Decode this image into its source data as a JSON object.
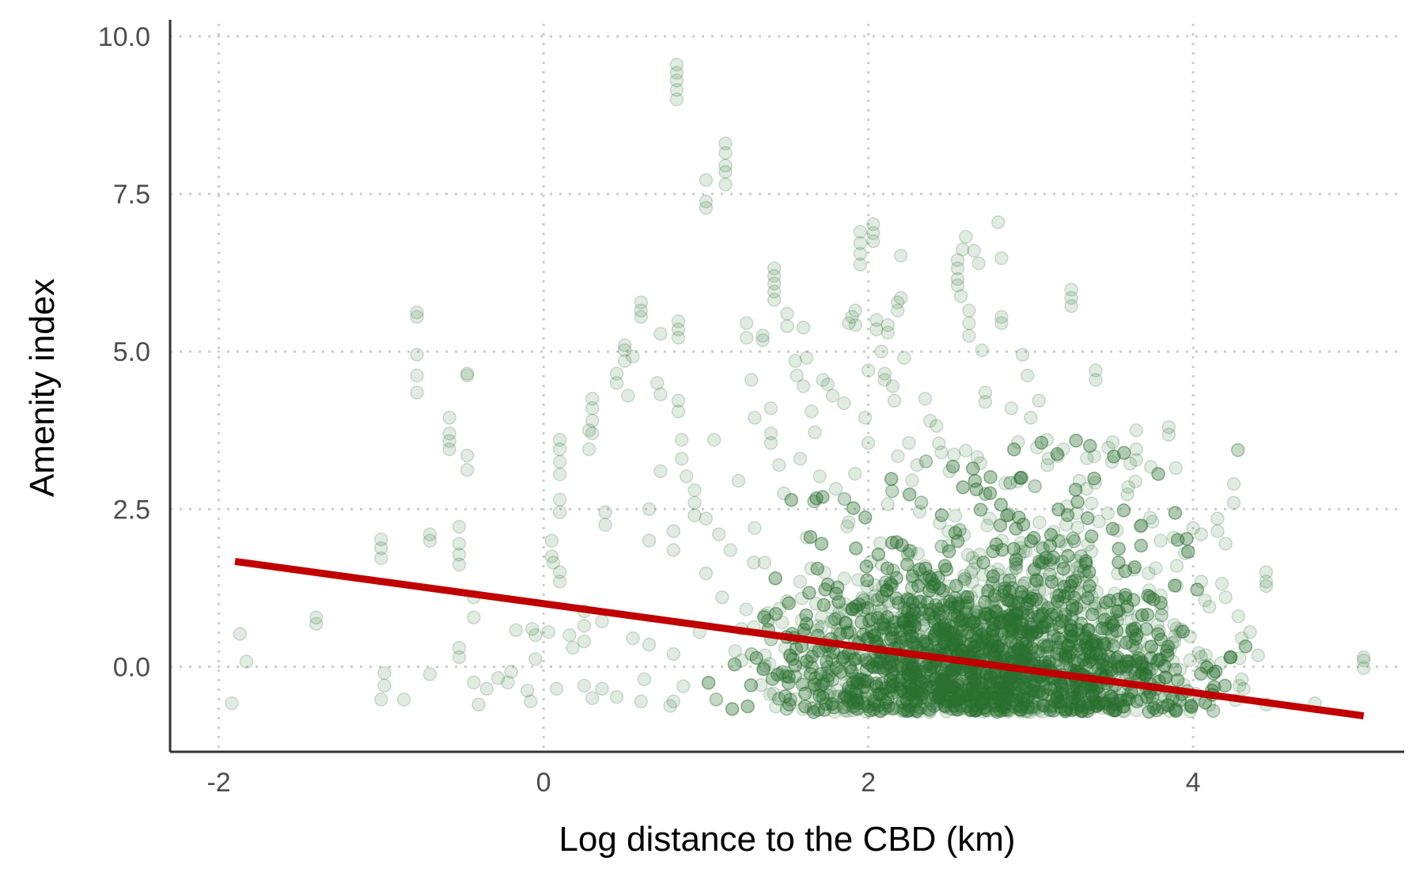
{
  "chart_data": {
    "type": "scatter",
    "title": "",
    "xlabel": "Log distance to the CBD (km)",
    "ylabel": "Amenity index",
    "xlim": [
      -2.3,
      5.3
    ],
    "ylim": [
      -1.35,
      10.2
    ],
    "xticks": [
      -2,
      0,
      2,
      4
    ],
    "yticks": [
      0.0,
      2.5,
      5.0,
      7.5,
      10.0
    ],
    "xtick_labels": [
      "-2",
      "0",
      "2",
      "4"
    ],
    "ytick_labels": [
      "0.0",
      "2.5",
      "5.0",
      "7.5",
      "10.0"
    ],
    "grid": true,
    "point_color": "#2e7032",
    "line_color": "#c00000",
    "series": [
      {
        "type": "scatter",
        "points": [
          [
            -1.92,
            -0.58
          ],
          [
            -1.87,
            0.52
          ],
          [
            -1.83,
            0.08
          ],
          [
            -1.4,
            0.78
          ],
          [
            -1.4,
            0.68
          ],
          [
            -1.0,
            2.02
          ],
          [
            -1.0,
            1.88
          ],
          [
            -1.0,
            1.72
          ],
          [
            -0.98,
            -0.1
          ],
          [
            -0.98,
            -0.3
          ],
          [
            -1.0,
            -0.52
          ],
          [
            -0.86,
            -0.52
          ],
          [
            -0.78,
            5.62
          ],
          [
            -0.78,
            5.55
          ],
          [
            -0.78,
            4.95
          ],
          [
            -0.78,
            4.62
          ],
          [
            -0.78,
            4.35
          ],
          [
            -0.7,
            2.1
          ],
          [
            -0.7,
            2.0
          ],
          [
            -0.7,
            -0.12
          ],
          [
            -0.58,
            3.95
          ],
          [
            -0.58,
            3.7
          ],
          [
            -0.58,
            3.58
          ],
          [
            -0.58,
            3.45
          ],
          [
            -0.52,
            2.22
          ],
          [
            -0.52,
            1.95
          ],
          [
            -0.52,
            1.78
          ],
          [
            -0.52,
            1.62
          ],
          [
            -0.52,
            0.3
          ],
          [
            -0.52,
            0.15
          ],
          [
            -0.47,
            4.62
          ],
          [
            -0.47,
            4.65
          ],
          [
            -0.47,
            3.35
          ],
          [
            -0.47,
            3.12
          ],
          [
            -0.43,
            -0.25
          ],
          [
            -0.43,
            1.1
          ],
          [
            -0.43,
            0.78
          ],
          [
            -0.4,
            -0.6
          ],
          [
            -0.35,
            -0.35
          ],
          [
            -0.28,
            -0.18
          ],
          [
            -0.22,
            -0.25
          ],
          [
            -0.2,
            -0.08
          ],
          [
            -0.17,
            0.58
          ],
          [
            -0.1,
            -0.38
          ],
          [
            -0.08,
            -0.55
          ],
          [
            -0.07,
            0.6
          ],
          [
            -0.05,
            0.5
          ],
          [
            -0.05,
            0.12
          ],
          [
            0.03,
            0.55
          ],
          [
            0.05,
            2.0
          ],
          [
            0.05,
            1.75
          ],
          [
            0.06,
            1.65
          ],
          [
            0.08,
            -0.35
          ],
          [
            0.1,
            3.6
          ],
          [
            0.1,
            3.45
          ],
          [
            0.1,
            3.25
          ],
          [
            0.1,
            3.05
          ],
          [
            0.1,
            2.65
          ],
          [
            0.1,
            2.45
          ],
          [
            0.1,
            1.5
          ],
          [
            0.1,
            1.35
          ],
          [
            0.16,
            0.5
          ],
          [
            0.18,
            0.3
          ],
          [
            0.25,
            0.88
          ],
          [
            0.25,
            0.65
          ],
          [
            0.25,
            0.4
          ],
          [
            0.25,
            -0.3
          ],
          [
            0.28,
            3.75
          ],
          [
            0.28,
            3.45
          ],
          [
            0.3,
            -0.5
          ],
          [
            0.3,
            4.25
          ],
          [
            0.3,
            4.1
          ],
          [
            0.3,
            3.9
          ],
          [
            0.3,
            3.7
          ],
          [
            0.36,
            0.72
          ],
          [
            0.36,
            -0.35
          ],
          [
            0.38,
            2.25
          ],
          [
            0.38,
            2.45
          ],
          [
            0.45,
            -0.48
          ],
          [
            0.45,
            4.5
          ],
          [
            0.45,
            4.65
          ],
          [
            0.5,
            5.02
          ],
          [
            0.5,
            5.1
          ],
          [
            0.5,
            4.85
          ],
          [
            0.52,
            4.3
          ],
          [
            0.55,
            4.92
          ],
          [
            0.55,
            0.45
          ],
          [
            0.6,
            -0.55
          ],
          [
            0.6,
            5.65
          ],
          [
            0.6,
            5.78
          ],
          [
            0.6,
            5.55
          ],
          [
            0.62,
            -0.2
          ],
          [
            0.65,
            2.0
          ],
          [
            0.65,
            2.5
          ],
          [
            0.65,
            0.35
          ],
          [
            0.7,
            4.5
          ],
          [
            0.72,
            4.32
          ],
          [
            0.72,
            5.28
          ],
          [
            0.72,
            3.1
          ],
          [
            0.8,
            2.15
          ],
          [
            0.8,
            1.85
          ],
          [
            0.8,
            -0.55
          ],
          [
            0.8,
            0.2
          ],
          [
            0.82,
            9.55
          ],
          [
            0.82,
            9.42
          ],
          [
            0.82,
            9.3
          ],
          [
            0.82,
            9.15
          ],
          [
            0.82,
            9.0
          ],
          [
            0.83,
            5.48
          ],
          [
            0.83,
            5.35
          ],
          [
            0.83,
            5.22
          ],
          [
            0.83,
            4.22
          ],
          [
            0.83,
            4.05
          ],
          [
            0.85,
            3.6
          ],
          [
            0.85,
            3.3
          ],
          [
            0.88,
            3.02
          ],
          [
            0.93,
            2.8
          ],
          [
            0.93,
            2.6
          ],
          [
            0.93,
            2.4
          ],
          [
            0.96,
            0.55
          ],
          [
            1.0,
            7.72
          ],
          [
            1.0,
            7.38
          ],
          [
            1.0,
            7.28
          ],
          [
            1.0,
            2.35
          ],
          [
            1.0,
            1.48
          ],
          [
            1.05,
            3.6
          ],
          [
            1.08,
            2.1
          ],
          [
            1.1,
            1.1
          ],
          [
            1.12,
            8.3
          ],
          [
            1.12,
            8.15
          ],
          [
            1.12,
            7.95
          ],
          [
            1.12,
            7.85
          ],
          [
            1.12,
            7.65
          ],
          [
            1.15,
            1.85
          ],
          [
            1.18,
            0.25
          ],
          [
            1.2,
            2.95
          ],
          [
            1.22,
            0.6
          ],
          [
            1.25,
            5.45
          ],
          [
            1.25,
            5.22
          ],
          [
            1.28,
            4.55
          ],
          [
            1.3,
            3.95
          ],
          [
            1.3,
            2.2
          ],
          [
            1.35,
            5.18
          ],
          [
            1.35,
            5.25
          ],
          [
            1.36,
            1.65
          ],
          [
            1.38,
            0.85
          ],
          [
            1.4,
            3.7
          ],
          [
            1.4,
            3.55
          ],
          [
            1.4,
            4.1
          ],
          [
            1.42,
            6.32
          ],
          [
            1.42,
            6.2
          ],
          [
            1.42,
            6.08
          ],
          [
            1.42,
            5.95
          ],
          [
            1.42,
            5.82
          ],
          [
            1.45,
            3.2
          ],
          [
            1.48,
            2.75
          ],
          [
            1.5,
            5.6
          ],
          [
            1.5,
            5.4
          ],
          [
            1.55,
            4.85
          ],
          [
            1.56,
            4.62
          ],
          [
            1.58,
            3.3
          ],
          [
            1.58,
            1.35
          ],
          [
            1.6,
            5.38
          ],
          [
            1.6,
            4.45
          ],
          [
            1.62,
            4.9
          ],
          [
            1.62,
            2.05
          ],
          [
            1.65,
            4.05
          ],
          [
            1.67,
            3.72
          ],
          [
            1.7,
            3.02
          ],
          [
            1.72,
            4.55
          ],
          [
            1.75,
            4.48
          ],
          [
            1.78,
            4.3
          ],
          [
            1.8,
            2.82
          ],
          [
            1.85,
            4.18
          ],
          [
            1.88,
            5.45
          ],
          [
            1.9,
            5.55
          ],
          [
            1.92,
            5.65
          ],
          [
            1.92,
            5.42
          ],
          [
            1.95,
            6.72
          ],
          [
            1.95,
            6.9
          ],
          [
            1.95,
            6.55
          ],
          [
            1.95,
            6.38
          ],
          [
            1.98,
            3.95
          ],
          [
            2.0,
            4.7
          ],
          [
            2.0,
            3.55
          ],
          [
            2.03,
            7.02
          ],
          [
            2.03,
            6.88
          ],
          [
            2.03,
            6.75
          ],
          [
            2.05,
            5.5
          ],
          [
            2.05,
            5.35
          ],
          [
            2.08,
            5.0
          ],
          [
            2.1,
            4.65
          ],
          [
            2.1,
            4.55
          ],
          [
            2.12,
            5.42
          ],
          [
            2.12,
            5.3
          ],
          [
            2.15,
            4.45
          ],
          [
            2.16,
            4.22
          ],
          [
            2.18,
            5.78
          ],
          [
            2.18,
            5.65
          ],
          [
            2.2,
            6.52
          ],
          [
            2.2,
            5.85
          ],
          [
            2.22,
            4.9
          ],
          [
            2.25,
            3.55
          ],
          [
            2.3,
            3.2
          ],
          [
            2.35,
            4.25
          ],
          [
            2.38,
            3.9
          ],
          [
            2.42,
            3.82
          ],
          [
            2.45,
            3.4
          ],
          [
            2.5,
            3.1
          ],
          [
            2.55,
            6.45
          ],
          [
            2.55,
            6.32
          ],
          [
            2.55,
            6.15
          ],
          [
            2.55,
            6.05
          ],
          [
            2.57,
            5.88
          ],
          [
            2.58,
            6.62
          ],
          [
            2.6,
            6.82
          ],
          [
            2.62,
            5.65
          ],
          [
            2.62,
            5.45
          ],
          [
            2.62,
            5.25
          ],
          [
            2.65,
            6.6
          ],
          [
            2.68,
            6.4
          ],
          [
            2.7,
            5.02
          ],
          [
            2.72,
            4.35
          ],
          [
            2.72,
            4.2
          ],
          [
            2.8,
            7.05
          ],
          [
            2.82,
            6.48
          ],
          [
            2.82,
            5.55
          ],
          [
            2.82,
            5.45
          ],
          [
            2.88,
            4.1
          ],
          [
            2.95,
            4.95
          ],
          [
            2.98,
            4.62
          ],
          [
            3.0,
            3.95
          ],
          [
            3.05,
            4.22
          ],
          [
            3.1,
            3.6
          ],
          [
            3.2,
            3.45
          ],
          [
            3.25,
            5.98
          ],
          [
            3.25,
            5.85
          ],
          [
            3.25,
            5.72
          ],
          [
            3.3,
            2.95
          ],
          [
            3.4,
            4.7
          ],
          [
            3.4,
            4.55
          ],
          [
            3.5,
            3.25
          ],
          [
            3.6,
            2.85
          ],
          [
            3.65,
            3.45
          ],
          [
            3.65,
            3.28
          ],
          [
            3.65,
            3.75
          ],
          [
            3.75,
            2.3
          ],
          [
            3.8,
            2.0
          ],
          [
            3.85,
            3.8
          ],
          [
            3.85,
            3.68
          ],
          [
            3.88,
            2.05
          ],
          [
            3.9,
            1.6
          ],
          [
            3.95,
            1.8
          ],
          [
            4.0,
            2.2
          ],
          [
            4.05,
            2.1
          ],
          [
            4.05,
            1.35
          ],
          [
            4.1,
            0.95
          ],
          [
            4.15,
            2.35
          ],
          [
            4.15,
            2.15
          ],
          [
            4.2,
            1.95
          ],
          [
            4.2,
            1.1
          ],
          [
            4.25,
            2.9
          ],
          [
            4.25,
            2.6
          ],
          [
            4.3,
            0.45
          ],
          [
            4.3,
            -0.2
          ],
          [
            4.35,
            0.55
          ],
          [
            4.4,
            0.18
          ],
          [
            4.45,
            1.5
          ],
          [
            4.45,
            1.35
          ],
          [
            4.45,
            1.28
          ],
          [
            4.45,
            -0.6
          ],
          [
            4.75,
            -0.58
          ],
          [
            5.05,
            0.15
          ],
          [
            5.05,
            0.1
          ],
          [
            5.05,
            -0.02
          ]
        ],
        "cloud": {
          "x_range": [
            0.75,
            4.35
          ],
          "x_center": 2.75,
          "y_floor": -0.72,
          "y_center": 0.45,
          "note_points": 4200
        }
      }
    ],
    "fit_line": {
      "x": [
        -1.9,
        5.05
      ],
      "y": [
        1.67,
        -0.78
      ]
    }
  }
}
